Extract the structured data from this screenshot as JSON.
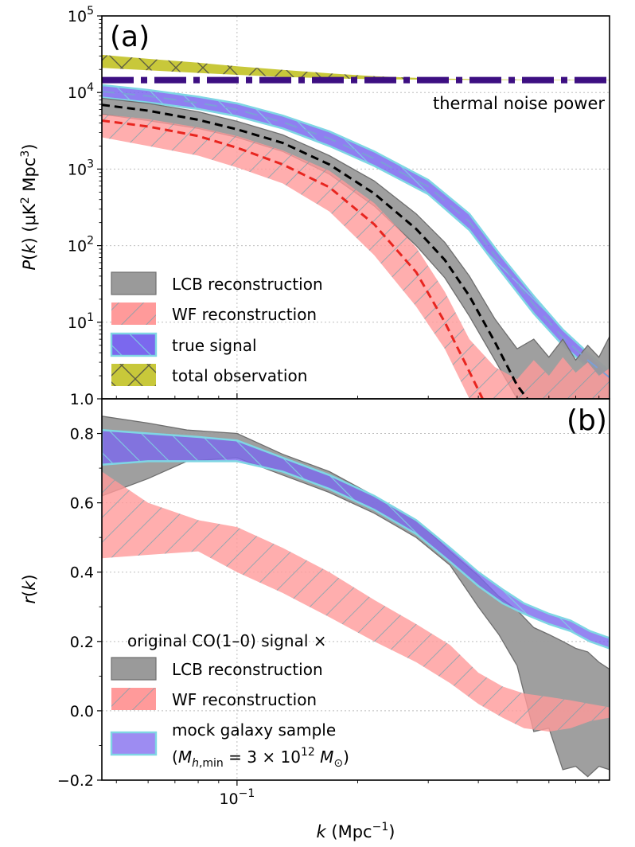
{
  "chart_data": [
    {
      "type": "area",
      "panel_label": "(a)",
      "ylabel": "P(k) (μK² Mpc³)",
      "ylabel_parts": [
        "P",
        "(",
        "k",
        ") (μK",
        "2",
        " Mpc",
        "3",
        ")"
      ],
      "yscale": "log",
      "xscale": "log",
      "ylim": [
        1.0,
        100000
      ],
      "xlim": [
        0.046,
        0.85
      ],
      "yticks": [
        {
          "value": 1.0,
          "label": "1.0"
        },
        {
          "value": 10,
          "base": "10",
          "exp": "1"
        },
        {
          "value": 100,
          "base": "10",
          "exp": "2"
        },
        {
          "value": 1000,
          "base": "10",
          "exp": "3"
        },
        {
          "value": 10000,
          "base": "10",
          "exp": "4"
        },
        {
          "value": 100000,
          "base": "10",
          "exp": "5"
        }
      ],
      "annotation": "thermal noise power",
      "thermal_noise_level": 14500,
      "legend": [
        "LCB reconstruction",
        "WF reconstruction",
        "true signal",
        "total observation"
      ],
      "bands": [
        {
          "name": "total observation",
          "color": "#c8c83a",
          "k": [
            0.046,
            0.06,
            0.08,
            0.1,
            0.13,
            0.17,
            0.22,
            0.3,
            0.4,
            0.6,
            0.85
          ],
          "lower": [
            21000,
            19500,
            18000,
            17000,
            16000,
            15300,
            14900,
            14700,
            14600,
            14500,
            14500
          ],
          "upper": [
            31000,
            27500,
            24500,
            22000,
            19800,
            17800,
            16300,
            15300,
            14900,
            14700,
            14600
          ]
        },
        {
          "name": "true signal",
          "color": "#7b68ee",
          "k": [
            0.046,
            0.06,
            0.08,
            0.1,
            0.13,
            0.17,
            0.22,
            0.3,
            0.38,
            0.45,
            0.55,
            0.65,
            0.75,
            0.85
          ],
          "lower": [
            8600,
            7400,
            6100,
            4900,
            3400,
            2000,
            1100,
            470,
            160,
            50,
            13,
            5,
            2.6,
            1.6
          ],
          "upper": [
            12500,
            10800,
            8800,
            7200,
            5000,
            3100,
            1700,
            720,
            260,
            80,
            22,
            8,
            4,
            2.3
          ]
        },
        {
          "name": "LCB reconstruction",
          "color": "#9a9a9a",
          "k": [
            0.046,
            0.06,
            0.08,
            0.1,
            0.13,
            0.17,
            0.22,
            0.28,
            0.33,
            0.38,
            0.44,
            0.5,
            0.55,
            0.6,
            0.65,
            0.7,
            0.75,
            0.8,
            0.85
          ],
          "lower": [
            5200,
            4300,
            3400,
            2600,
            1700,
            860,
            330,
            100,
            38,
            12,
            3.2,
            1.0,
            1.0,
            1.0,
            1.0,
            1.0,
            1.0,
            1.0,
            1.0
          ],
          "upper": [
            8400,
            7200,
            5600,
            4200,
            2800,
            1500,
            700,
            260,
            110,
            40,
            11,
            4.5,
            6,
            3.5,
            6,
            3.2,
            5,
            3.5,
            6.5
          ]
        },
        {
          "name": "WF reconstruction",
          "color": "#ff9a9a",
          "k": [
            0.046,
            0.06,
            0.08,
            0.1,
            0.13,
            0.17,
            0.22,
            0.28,
            0.33,
            0.38,
            0.44,
            0.5,
            0.55,
            0.6,
            0.65,
            0.7,
            0.75,
            0.8,
            0.85
          ],
          "lower": [
            2600,
            2000,
            1500,
            1050,
            650,
            280,
            75,
            16,
            4.5,
            1.0,
            1.0,
            1.0,
            1.0,
            1.0,
            1.0,
            1.0,
            1.0,
            1.0,
            1.0
          ],
          "upper": [
            5200,
            4500,
            3500,
            2700,
            1750,
            950,
            360,
            95,
            25,
            6,
            2.6,
            1.8,
            3.2,
            2.0,
            3.5,
            2.2,
            3.0,
            2.0,
            2.5
          ]
        }
      ],
      "lines": [
        {
          "name": "LCB mean",
          "color": "#000000",
          "k": [
            0.046,
            0.06,
            0.08,
            0.1,
            0.13,
            0.17,
            0.22,
            0.28,
            0.33,
            0.38,
            0.44,
            0.5,
            0.53
          ],
          "val": [
            6900,
            5800,
            4400,
            3300,
            2200,
            1150,
            480,
            165,
            65,
            22,
            5.5,
            1.5,
            1.0
          ]
        },
        {
          "name": "WF mean",
          "color": "#e8251f",
          "k": [
            0.046,
            0.06,
            0.08,
            0.1,
            0.13,
            0.17,
            0.22,
            0.28,
            0.33,
            0.37,
            0.41
          ],
          "val": [
            4300,
            3600,
            2700,
            1900,
            1150,
            580,
            190,
            45,
            10,
            3,
            1.0
          ]
        },
        {
          "name": "true mean",
          "color": "#7b9fd8",
          "k": [
            0.046,
            0.06,
            0.08,
            0.1,
            0.13,
            0.17,
            0.22,
            0.3,
            0.38,
            0.45,
            0.55,
            0.65,
            0.75,
            0.85
          ],
          "val": [
            10300,
            9000,
            7300,
            6000,
            4100,
            2500,
            1370,
            590,
            205,
            64,
            17,
            6.3,
            3.2,
            1.9
          ]
        }
      ]
    },
    {
      "type": "area",
      "panel_label": "(b)",
      "ylabel": "r(k)",
      "ylabel_parts": [
        "r",
        "(",
        "k",
        ")"
      ],
      "xlabel": "k (Mpc⁻¹)",
      "xlabel_parts": [
        "k",
        " (Mpc",
        "−1",
        ")"
      ],
      "xscale": "log",
      "ylim": [
        -0.2,
        0.9
      ],
      "xlim": [
        0.046,
        0.85
      ],
      "yticks": [
        {
          "value": -0.2,
          "label": "−0.2"
        },
        {
          "value": 0.0,
          "label": "0.0"
        },
        {
          "value": 0.2,
          "label": "0.2"
        },
        {
          "value": 0.4,
          "label": "0.4"
        },
        {
          "value": 0.6,
          "label": "0.6"
        },
        {
          "value": 0.8,
          "label": "0.8"
        }
      ],
      "xticks": [
        {
          "value": 0.1,
          "base": "10",
          "exp": "−1"
        }
      ],
      "legend_title": "original CO(1–0) signal ×",
      "legend": [
        "LCB reconstruction",
        "WF reconstruction",
        "mock galaxy sample",
        "(M_h,min = 3 × 10^12 M_⊙)"
      ],
      "legend_mass_parts": [
        "(",
        "M",
        "h",
        ",min",
        " = 3 × 10",
        "12",
        " ",
        "M",
        "⊙",
        ")"
      ],
      "bands": [
        {
          "name": "LCB reconstruction",
          "color": "#9a9a9a",
          "k": [
            0.046,
            0.06,
            0.075,
            0.1,
            0.13,
            0.17,
            0.22,
            0.28,
            0.34,
            0.4,
            0.45,
            0.5,
            0.55,
            0.6,
            0.65,
            0.7,
            0.75,
            0.8,
            0.85
          ],
          "lower": [
            0.62,
            0.67,
            0.72,
            0.73,
            0.68,
            0.63,
            0.57,
            0.5,
            0.42,
            0.3,
            0.22,
            0.13,
            -0.06,
            -0.05,
            -0.17,
            -0.16,
            -0.19,
            -0.16,
            -0.17
          ],
          "upper": [
            0.85,
            0.83,
            0.81,
            0.8,
            0.74,
            0.69,
            0.62,
            0.55,
            0.46,
            0.39,
            0.33,
            0.29,
            0.24,
            0.22,
            0.2,
            0.18,
            0.17,
            0.14,
            0.12
          ]
        },
        {
          "name": "WF reconstruction",
          "color": "#ff9a9a",
          "k": [
            0.046,
            0.06,
            0.08,
            0.1,
            0.13,
            0.17,
            0.22,
            0.28,
            0.34,
            0.4,
            0.46,
            0.52,
            0.6,
            0.68,
            0.76,
            0.85
          ],
          "lower": [
            0.44,
            0.45,
            0.46,
            0.4,
            0.34,
            0.27,
            0.2,
            0.14,
            0.08,
            0.02,
            -0.02,
            -0.05,
            -0.06,
            -0.05,
            -0.03,
            -0.02
          ],
          "upper": [
            0.69,
            0.6,
            0.55,
            0.53,
            0.47,
            0.4,
            0.32,
            0.25,
            0.19,
            0.11,
            0.07,
            0.05,
            0.04,
            0.03,
            0.02,
            0.01
          ]
        },
        {
          "name": "mock galaxy sample",
          "color": "#7b68ee",
          "k": [
            0.046,
            0.06,
            0.08,
            0.1,
            0.13,
            0.17,
            0.22,
            0.28,
            0.34,
            0.4,
            0.46,
            0.52,
            0.6,
            0.68,
            0.76,
            0.85
          ],
          "lower": [
            0.71,
            0.72,
            0.72,
            0.72,
            0.69,
            0.64,
            0.58,
            0.51,
            0.43,
            0.36,
            0.31,
            0.28,
            0.25,
            0.23,
            0.2,
            0.18
          ],
          "upper": [
            0.81,
            0.8,
            0.79,
            0.78,
            0.73,
            0.68,
            0.62,
            0.55,
            0.47,
            0.4,
            0.35,
            0.31,
            0.28,
            0.26,
            0.23,
            0.21
          ]
        }
      ]
    }
  ]
}
